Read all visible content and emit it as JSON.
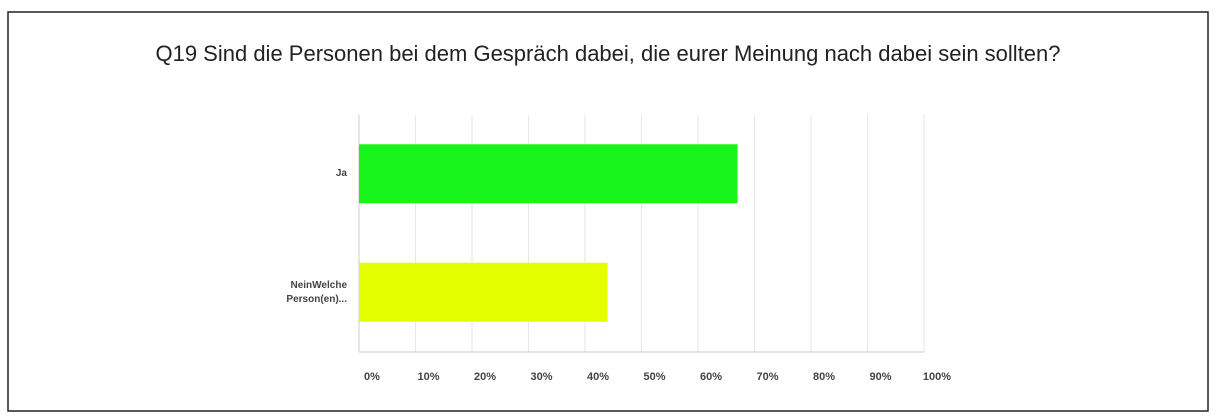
{
  "chart_data": {
    "type": "barh",
    "title": "Q19 Sind die Personen bei dem Gespräch dabei, die eurer Meinung nach dabei sein sollten?",
    "categories": [
      "Ja",
      "NeinWelche Person(en)..."
    ],
    "values": [
      67,
      44
    ],
    "colors": [
      "#19f51c",
      "#e4ff00"
    ],
    "xlim": [
      0,
      100
    ],
    "xticks": [
      {
        "value": 0,
        "label": "0%"
      },
      {
        "value": 10,
        "label": "10%"
      },
      {
        "value": 20,
        "label": "20%"
      },
      {
        "value": 30,
        "label": "30%"
      },
      {
        "value": 40,
        "label": "40%"
      },
      {
        "value": 50,
        "label": "50%"
      },
      {
        "value": 60,
        "label": "60%"
      },
      {
        "value": 70,
        "label": "70%"
      },
      {
        "value": 80,
        "label": "80%"
      },
      {
        "value": 90,
        "label": "90%"
      },
      {
        "value": 100,
        "label": "100%"
      }
    ],
    "grid": true
  }
}
